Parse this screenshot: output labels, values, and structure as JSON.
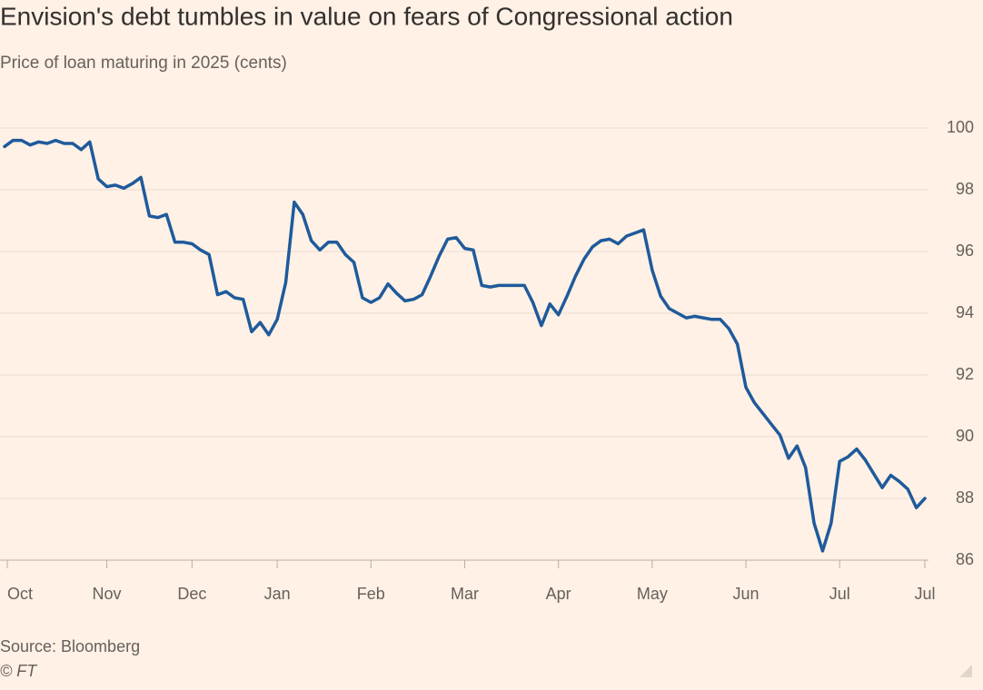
{
  "chart_data": {
    "type": "line",
    "title": "Envision's debt tumbles in value on fears of Congressional action",
    "subtitle": "Price of loan maturing in 2025 (cents)",
    "source": "Source: Bloomberg",
    "copyright": "© FT",
    "categories": [
      "Oct",
      null,
      null,
      null,
      null,
      null,
      null,
      null,
      null,
      null,
      null,
      null,
      "Nov",
      null,
      null,
      null,
      null,
      null,
      null,
      null,
      null,
      null,
      "Dec",
      null,
      null,
      null,
      null,
      null,
      null,
      null,
      null,
      null,
      "Jan",
      null,
      null,
      null,
      null,
      null,
      null,
      null,
      null,
      null,
      null,
      "Feb",
      null,
      null,
      null,
      null,
      null,
      null,
      null,
      null,
      null,
      null,
      "Mar",
      null,
      null,
      null,
      null,
      null,
      null,
      null,
      null,
      null,
      null,
      "Apr",
      null,
      null,
      null,
      null,
      null,
      null,
      null,
      null,
      null,
      null,
      "May",
      null,
      null,
      null,
      null,
      null,
      null,
      null,
      null,
      null,
      null,
      "Jun",
      null,
      null,
      null,
      null,
      null,
      null,
      null,
      null,
      null,
      null,
      "Jul",
      null,
      null,
      null,
      null,
      null,
      null,
      null,
      null,
      null,
      "Jul"
    ],
    "values": [
      99.4,
      99.6,
      99.6,
      99.45,
      99.55,
      99.5,
      99.6,
      99.5,
      99.5,
      99.3,
      99.55,
      98.35,
      98.1,
      98.15,
      98.05,
      98.2,
      98.4,
      97.15,
      97.1,
      97.2,
      96.3,
      96.3,
      96.25,
      96.05,
      95.9,
      94.6,
      94.7,
      94.5,
      94.45,
      93.4,
      93.7,
      93.3,
      93.8,
      95.0,
      97.6,
      97.2,
      96.35,
      96.05,
      96.3,
      96.3,
      95.9,
      95.65,
      94.5,
      94.35,
      94.5,
      94.95,
      94.65,
      94.4,
      94.45,
      94.6,
      95.2,
      95.85,
      96.4,
      96.45,
      96.1,
      96.05,
      94.9,
      94.85,
      94.9,
      94.9,
      94.9,
      94.9,
      94.35,
      93.6,
      94.3,
      93.95,
      94.55,
      95.2,
      95.75,
      96.15,
      96.35,
      96.4,
      96.25,
      96.5,
      96.6,
      96.7,
      95.4,
      94.55,
      94.15,
      94.0,
      93.85,
      93.9,
      93.85,
      93.8,
      93.8,
      93.5,
      93.0,
      91.6,
      91.1,
      90.75,
      90.4,
      90.05,
      89.3,
      89.7,
      89.0,
      87.2,
      86.3,
      87.2,
      89.2,
      89.35,
      89.6,
      89.25,
      88.8,
      88.35,
      88.75,
      88.55,
      88.3,
      87.7,
      88.0
    ],
    "color": "#1f5a9b",
    "ylim": [
      86,
      100
    ],
    "yticks": [
      86,
      88,
      90,
      92,
      94,
      96,
      98,
      100
    ],
    "grid": true
  }
}
